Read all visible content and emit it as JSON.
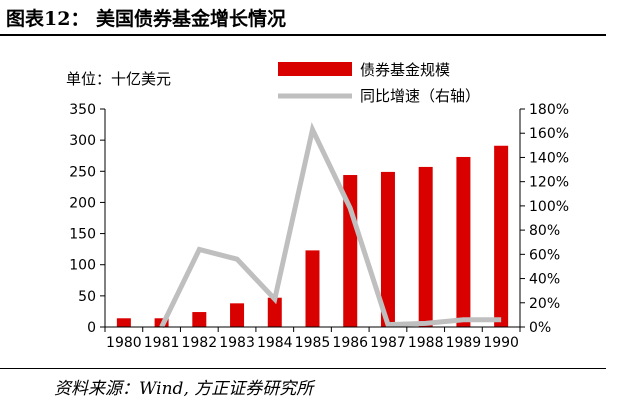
{
  "figure_title": "图表12： 美国债券基金增长情况",
  "source": "资料来源：Wind, 方正证券研究所",
  "colors": {
    "bar": "#d90000",
    "line": "#bfbfbf"
  },
  "chart_data": {
    "type": "bar",
    "unit_label": "单位：十亿美元",
    "categories": [
      "1980",
      "1981",
      "1982",
      "1983",
      "1984",
      "1985",
      "1986",
      "1987",
      "1988",
      "1989",
      "1990"
    ],
    "series": [
      {
        "name": "债券基金规模",
        "type": "bar",
        "axis": "left",
        "values": [
          14,
          14,
          24,
          38,
          47,
          123,
          244,
          249,
          257,
          273,
          291
        ]
      },
      {
        "name": "同比增速（右轴）",
        "type": "line",
        "axis": "right",
        "values": [
          null,
          0,
          64,
          56,
          23,
          163,
          98,
          2,
          3,
          6,
          6
        ]
      }
    ],
    "left_axis": {
      "min": 0,
      "max": 350,
      "ticks": [
        0,
        50,
        100,
        150,
        200,
        250,
        300,
        350
      ]
    },
    "right_axis": {
      "min": 0,
      "max": 180,
      "ticks": [
        "0%",
        "20%",
        "40%",
        "60%",
        "80%",
        "100%",
        "120%",
        "140%",
        "160%",
        "180%"
      ]
    },
    "grid": false,
    "legend_position": "top-right"
  }
}
